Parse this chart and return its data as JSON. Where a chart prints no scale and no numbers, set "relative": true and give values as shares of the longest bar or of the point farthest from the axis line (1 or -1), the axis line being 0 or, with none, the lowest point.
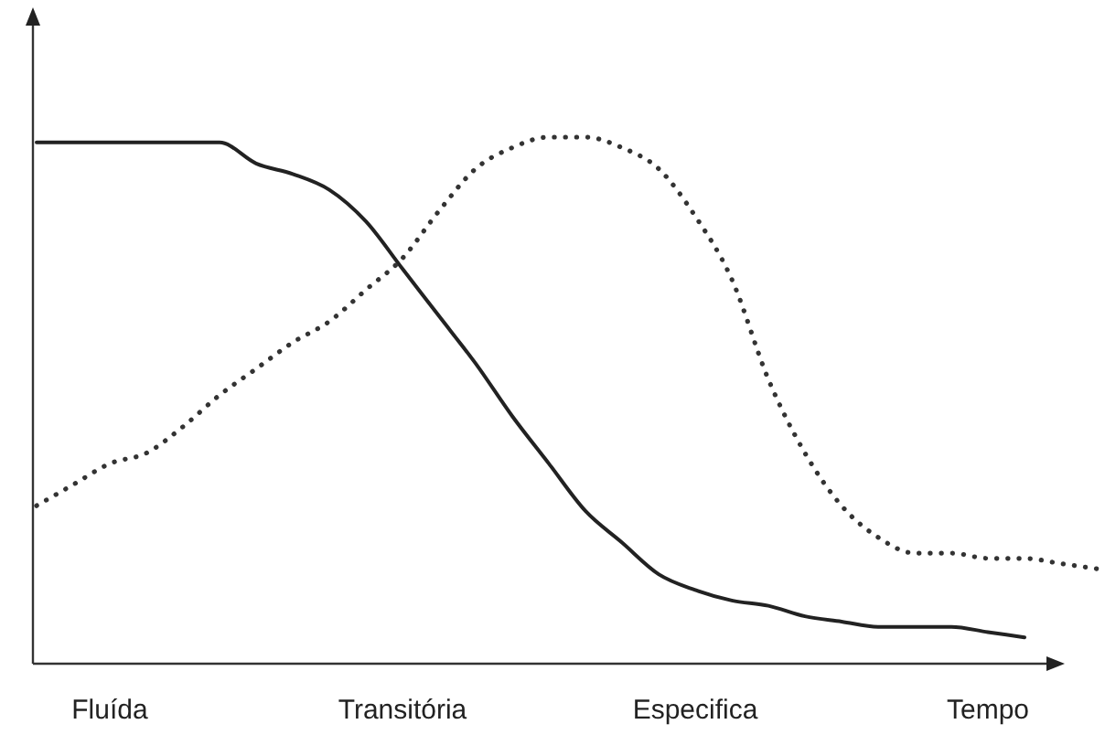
{
  "chart_data": {
    "type": "line",
    "relative": true,
    "categories": [
      null,
      null,
      "Fluída",
      null,
      null,
      null,
      null,
      null,
      null,
      null,
      "Transitória",
      null,
      null,
      null,
      null,
      null,
      null,
      null,
      "Especifica",
      null,
      null,
      null,
      null,
      null,
      null,
      null,
      "Tempo",
      null,
      null,
      null
    ],
    "series": [
      {
        "color": "#222222",
        "line_style": "solid",
        "values": [
          0.99,
          0.99,
          0.99,
          0.99,
          0.99,
          0.99,
          0.95,
          0.93,
          0.9,
          0.84,
          0.75,
          0.66,
          0.57,
          0.47,
          0.38,
          0.29,
          0.23,
          0.17,
          0.14,
          0.12,
          0.11,
          0.09,
          0.08,
          0.07,
          0.07,
          0.07,
          0.06,
          0.05,
          null,
          null
        ]
      },
      {
        "color": "#333333",
        "line_style": "dotted",
        "values": [
          0.3,
          0.34,
          0.38,
          0.4,
          0.45,
          0.51,
          0.56,
          0.61,
          0.65,
          0.71,
          0.77,
          0.86,
          0.94,
          0.98,
          1.0,
          1.0,
          0.98,
          0.94,
          0.85,
          0.73,
          0.54,
          0.4,
          0.3,
          0.24,
          0.21,
          0.21,
          0.2,
          0.2,
          0.19,
          0.18
        ]
      }
    ],
    "marker": "none"
  }
}
